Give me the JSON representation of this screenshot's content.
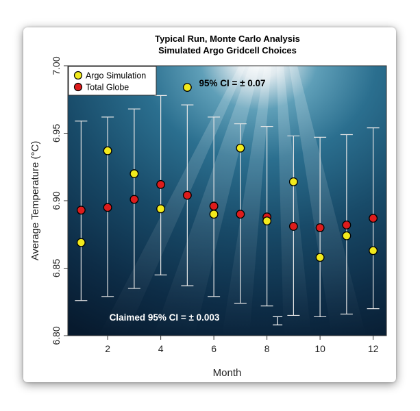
{
  "chart_data": {
    "type": "scatter",
    "title": "Typical Run, Monte Carlo Analysis",
    "subtitle": "Simulated Argo Gridcell Choices",
    "xlabel": "Month",
    "ylabel": "Average Temperature (°C)",
    "xlim": [
      0.5,
      12.5
    ],
    "ylim": [
      6.8,
      7.0
    ],
    "xticks": [
      "2",
      "4",
      "6",
      "8",
      "10",
      "12"
    ],
    "yticks": [
      "6.80",
      "6.85",
      "6.90",
      "6.95",
      "7.00"
    ],
    "x": [
      1,
      2,
      3,
      4,
      5,
      6,
      7,
      8,
      9,
      10,
      11,
      12
    ],
    "series": [
      {
        "name": "Argo Simulation",
        "color": "#f2ea1c",
        "values": [
          6.869,
          6.937,
          6.92,
          6.894,
          6.984,
          6.89,
          6.939,
          6.885,
          6.914,
          6.858,
          6.874,
          6.863
        ]
      },
      {
        "name": "Total Globe",
        "color": "#dd1c1c",
        "values": [
          6.893,
          6.895,
          6.901,
          6.912,
          6.904,
          6.896,
          6.89,
          6.888,
          6.881,
          6.88,
          6.882,
          6.887
        ]
      }
    ],
    "error_bars": {
      "lower": [
        6.826,
        6.829,
        6.835,
        6.845,
        6.837,
        6.829,
        6.824,
        6.822,
        6.815,
        6.814,
        6.816,
        6.82
      ],
      "upper": [
        6.959,
        6.962,
        6.968,
        6.978,
        6.971,
        6.962,
        6.957,
        6.955,
        6.948,
        6.947,
        6.949,
        6.954
      ],
      "color": "#e6e6e6"
    },
    "annotations": [
      {
        "text": "95% CI = ± 0.07",
        "color": "#000000"
      },
      {
        "text": "Claimed 95% CI = ± 0.003",
        "color": "#ffffff"
      }
    ],
    "claimed_ci": {
      "x": 8.4,
      "center": 6.811,
      "half_width": 0.003
    },
    "legend_position": "top-left",
    "background": "underwater photograph"
  }
}
